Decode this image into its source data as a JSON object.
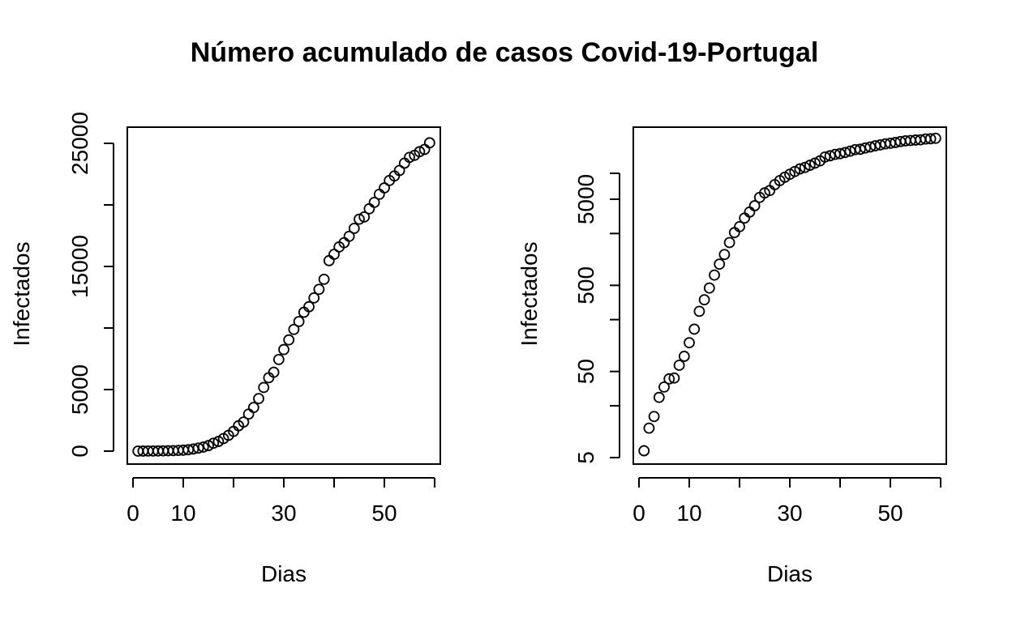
{
  "title": "Número acumulado de casos Covid-19-Portugal",
  "chart_data": [
    {
      "type": "scatter",
      "xlabel": "Dias",
      "ylabel": "Infectados",
      "yscale": "linear",
      "xlim": [
        0,
        60
      ],
      "ylim": [
        0,
        26000
      ],
      "x_ticks": [
        0,
        10,
        20,
        30,
        40,
        50,
        60
      ],
      "x_tick_labels": [
        "0",
        "10",
        "",
        "30",
        "",
        "50",
        ""
      ],
      "y_ticks": [
        0,
        5000,
        10000,
        15000,
        20000,
        25000
      ],
      "y_tick_labels": [
        "0",
        "5000",
        "",
        "15000",
        "",
        "25000"
      ],
      "marker": "open-circle",
      "grid": false,
      "series": [
        {
          "x": [
            1,
            2,
            3,
            4,
            5,
            6,
            7,
            8,
            9,
            10,
            11,
            12,
            13,
            14,
            15,
            16,
            17,
            18,
            19,
            20,
            21,
            22,
            23,
            24,
            25,
            26,
            27,
            28,
            29,
            30,
            31,
            32,
            33,
            34,
            35,
            36,
            37,
            38,
            39,
            40,
            41,
            42,
            43,
            44,
            45,
            46,
            47,
            48,
            49,
            50,
            51,
            52,
            53,
            54,
            55,
            56,
            57,
            58,
            59
          ],
          "y": [
            2,
            4,
            6,
            9,
            13,
            21,
            30,
            41,
            59,
            78,
            112,
            169,
            245,
            331,
            448,
            642,
            785,
            1020,
            1280,
            1600,
            2060,
            2362,
            3010,
            3544,
            4268,
            5170,
            5962,
            6408,
            7443,
            8251,
            9034,
            9886,
            10524,
            11278,
            11730,
            12442,
            13141,
            13956,
            15472,
            15987,
            16585,
            16934,
            17448,
            18091,
            18841,
            19022,
            19685,
            20206,
            20863,
            21379,
            21982,
            22353,
            22797,
            23392,
            23864,
            24027,
            24322,
            24505,
            25045
          ]
        }
      ]
    },
    {
      "type": "scatter",
      "xlabel": "Dias",
      "ylabel": "Infectados",
      "yscale": "log",
      "xlim": [
        0,
        60
      ],
      "x_ticks": [
        0,
        10,
        20,
        30,
        40,
        50,
        60
      ],
      "x_tick_labels": [
        "0",
        "10",
        "",
        "30",
        "",
        "50",
        ""
      ],
      "y_ticks": [
        5,
        20,
        50,
        200,
        500,
        2000,
        5000,
        10000
      ],
      "y_tick_labels": [
        "5",
        "",
        "50",
        "",
        "500",
        "",
        "5000",
        ""
      ],
      "marker": "open-circle",
      "grid": false,
      "series": [
        {
          "x": [
            1,
            2,
            3,
            4,
            5,
            6,
            7,
            8,
            9,
            10,
            11,
            12,
            13,
            14,
            15,
            16,
            17,
            18,
            19,
            20,
            21,
            22,
            23,
            24,
            25,
            26,
            27,
            28,
            29,
            30,
            31,
            32,
            33,
            34,
            35,
            36,
            37,
            38,
            39,
            40,
            41,
            42,
            43,
            44,
            45,
            46,
            47,
            48,
            49,
            50,
            51,
            52,
            53,
            54,
            55,
            56,
            57,
            58,
            59
          ],
          "y": [
            6,
            11,
            15,
            25,
            33,
            41,
            42,
            59,
            75,
            108,
            155,
            250,
            340,
            466,
            658,
            882,
            1140,
            1570,
            2050,
            2400,
            3020,
            3550,
            4200,
            5250,
            5920,
            6310,
            7390,
            8230,
            9010,
            9760,
            10500,
            11250,
            11700,
            12400,
            13130,
            13960,
            15470,
            15990,
            16580,
            16930,
            17450,
            18090,
            18840,
            19020,
            19690,
            20200,
            20860,
            21380,
            21980,
            22350,
            22790,
            23390,
            23860,
            24020,
            24320,
            24500,
            25050,
            25190,
            25520
          ]
        }
      ]
    }
  ]
}
